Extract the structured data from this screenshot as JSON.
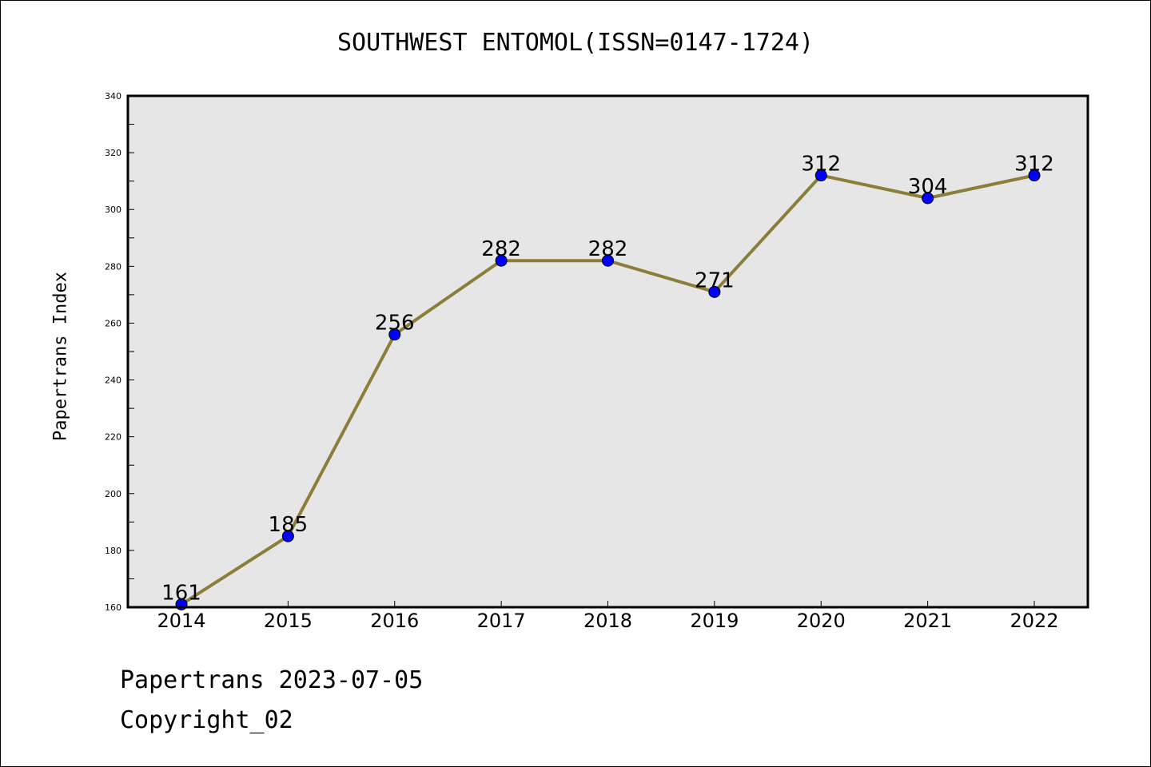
{
  "chart_data": {
    "type": "line",
    "title": "SOUTHWEST ENTOMOL(ISSN=0147-1724)",
    "xlabel": "",
    "ylabel": "Papertrans Index",
    "x": [
      "2014",
      "2015",
      "2016",
      "2017",
      "2018",
      "2019",
      "2020",
      "2021",
      "2022"
    ],
    "series": [
      {
        "values": [
          161,
          185,
          256,
          282,
          282,
          271,
          312,
          304,
          312
        ]
      }
    ],
    "ylim": [
      160,
      340
    ],
    "yticks": [
      "160",
      "180",
      "200",
      "220",
      "240",
      "260",
      "280",
      "300",
      "320",
      "340"
    ],
    "data_labels": [
      "161",
      "185",
      "256",
      "282",
      "282",
      "271",
      "312",
      "304",
      "312"
    ],
    "grid": false,
    "colors": {
      "line": "#8B7D3A",
      "marker": "#0000FF",
      "plot_bg": "#E6E6E6"
    }
  },
  "footer": {
    "line1": "Papertrans 2023-07-05",
    "line2": "Copyright_02"
  }
}
